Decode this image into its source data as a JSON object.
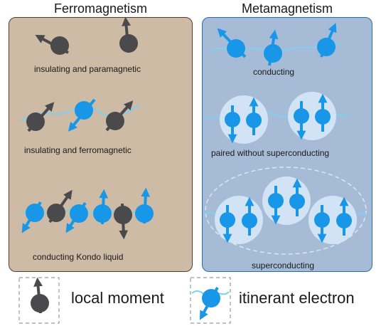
{
  "headings": {
    "left": "Ferromagnetism",
    "right": "Metamagnetism"
  },
  "ferro_labels": {
    "paramagnetic": "insulating and paramagnetic",
    "ferromagnetic": "insulating and ferromagnetic",
    "kondo": "conducting Kondo liquid"
  },
  "meta_labels": {
    "conducting": "conducting",
    "paired": "paired without superconducting",
    "superconducting": "superconducting"
  },
  "legend": {
    "local_moment": "local moment",
    "itinerant_electron": "itinerant electron"
  },
  "colors": {
    "local_moment": "#4a4a4c",
    "itinerant_electron": "#1897e8",
    "wave": "#7dd0f2",
    "ferro_panel": "#cdbba5",
    "meta_panel": "#a6bcd6"
  }
}
